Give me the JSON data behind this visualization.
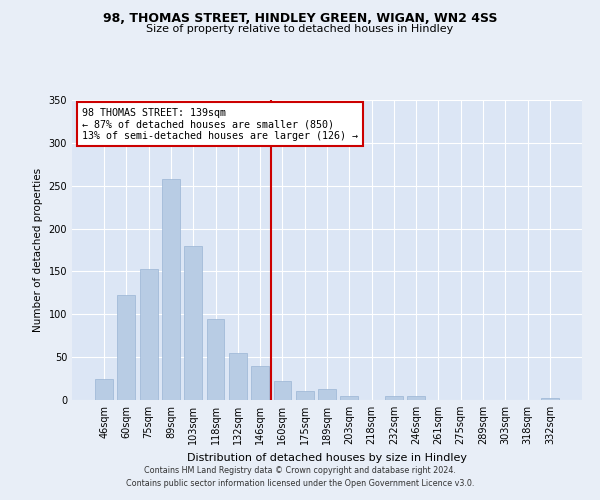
{
  "title": "98, THOMAS STREET, HINDLEY GREEN, WIGAN, WN2 4SS",
  "subtitle": "Size of property relative to detached houses in Hindley",
  "xlabel": "Distribution of detached houses by size in Hindley",
  "ylabel": "Number of detached properties",
  "categories": [
    "46sqm",
    "60sqm",
    "75sqm",
    "89sqm",
    "103sqm",
    "118sqm",
    "132sqm",
    "146sqm",
    "160sqm",
    "175sqm",
    "189sqm",
    "203sqm",
    "218sqm",
    "232sqm",
    "246sqm",
    "261sqm",
    "275sqm",
    "289sqm",
    "303sqm",
    "318sqm",
    "332sqm"
  ],
  "values": [
    25,
    122,
    153,
    258,
    180,
    95,
    55,
    40,
    22,
    11,
    13,
    5,
    0,
    5,
    5,
    0,
    0,
    0,
    0,
    0,
    2
  ],
  "bar_color": "#b8cce4",
  "bar_edgecolor": "#9ab5d4",
  "vline_x": 7.5,
  "vline_color": "#cc0000",
  "annotation_line1": "98 THOMAS STREET: 139sqm",
  "annotation_line2": "← 87% of detached houses are smaller (850)",
  "annotation_line3": "13% of semi-detached houses are larger (126) →",
  "annotation_box_edgecolor": "#cc0000",
  "ylim": [
    0,
    350
  ],
  "yticks": [
    0,
    50,
    100,
    150,
    200,
    250,
    300,
    350
  ],
  "footer_line1": "Contains HM Land Registry data © Crown copyright and database right 2024.",
  "footer_line2": "Contains public sector information licensed under the Open Government Licence v3.0.",
  "background_color": "#e8eef7",
  "plot_background": "#dce6f5"
}
